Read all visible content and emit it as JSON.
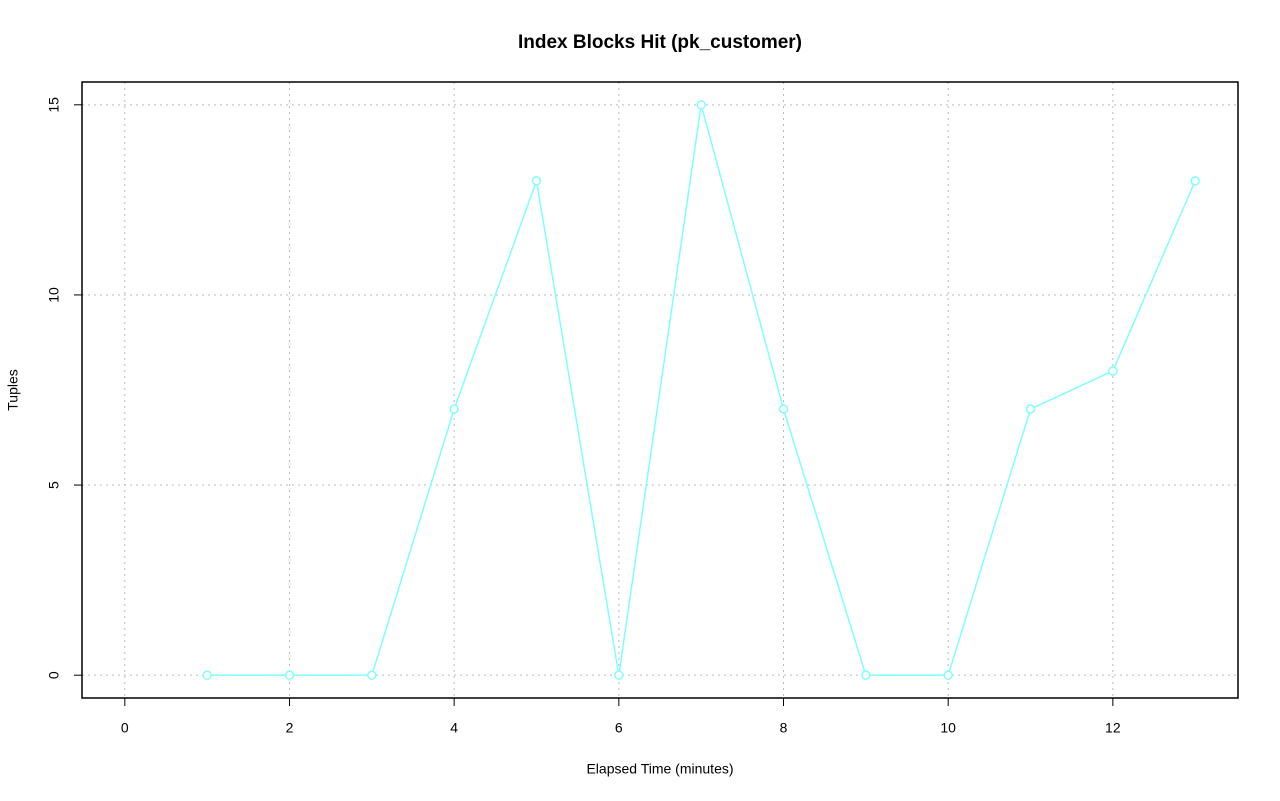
{
  "chart_data": {
    "type": "line",
    "title": "Index Blocks Hit (pk_customer)",
    "x_label": "Elapsed Time (minutes)",
    "y_label": "Tuples",
    "x": [
      1,
      2,
      3,
      4,
      5,
      6,
      7,
      8,
      9,
      10,
      11,
      12,
      13
    ],
    "values": [
      0,
      0,
      0,
      7,
      13,
      0,
      15,
      7,
      0,
      0,
      7,
      8,
      13
    ],
    "color": "#80ffff",
    "xlim": [
      -0.52,
      13.52
    ],
    "xticks": [
      0,
      2,
      4,
      6,
      8,
      10,
      12
    ],
    "ylim": [
      -0.6,
      15.6
    ],
    "yticks": [
      0,
      5,
      10,
      15
    ],
    "grid": true
  }
}
